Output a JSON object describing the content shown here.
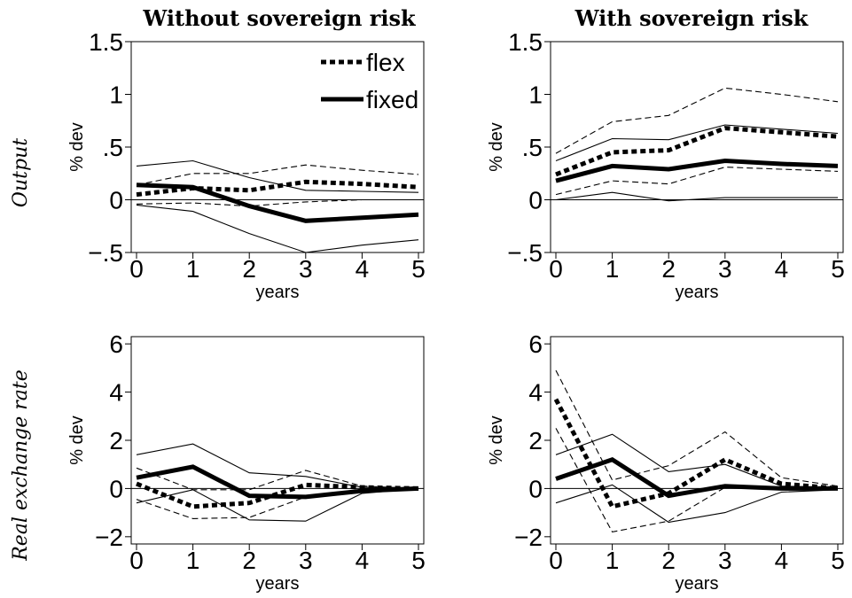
{
  "col_titles": [
    "Without sovereign risk",
    "With sovereign risk"
  ],
  "row_titles": [
    "Output",
    "Real exchange rate"
  ],
  "legend": {
    "flex": "flex",
    "fixed": "fixed"
  },
  "chart_data": [
    {
      "type": "line",
      "xlabel": "years",
      "ylabel": "% dev",
      "x": [
        0,
        1,
        2,
        3,
        4,
        5
      ],
      "xlim": [
        0,
        5
      ],
      "ylim": [
        -0.5,
        1.5
      ],
      "yticks": [
        -0.5,
        0,
        0.5,
        1,
        1.5
      ],
      "ytick_labels": [
        "−.5",
        "0",
        ".5",
        "1",
        "1.5"
      ],
      "zero_line": true,
      "legend_position": "top-right",
      "series": [
        {
          "name": "flex",
          "style": "thick-dotted",
          "values": [
            0.05,
            0.11,
            0.09,
            0.17,
            0.15,
            0.12
          ]
        },
        {
          "style": "thin-dashed",
          "values": [
            0.14,
            0.25,
            0.25,
            0.33,
            0.28,
            0.24
          ]
        },
        {
          "style": "thin-dashed",
          "values": [
            -0.04,
            -0.03,
            -0.06,
            -0.02,
            0.0,
            0.0
          ]
        },
        {
          "name": "fixed",
          "style": "thick-solid",
          "values": [
            0.14,
            0.12,
            -0.06,
            -0.2,
            -0.17,
            -0.14
          ]
        },
        {
          "style": "thin-solid",
          "values": [
            0.32,
            0.37,
            0.21,
            0.09,
            0.08,
            0.07
          ]
        },
        {
          "style": "thin-solid",
          "values": [
            -0.05,
            -0.11,
            -0.32,
            -0.5,
            -0.43,
            -0.38
          ]
        }
      ]
    },
    {
      "type": "line",
      "xlabel": "years",
      "ylabel": "% dev",
      "x": [
        0,
        1,
        2,
        3,
        4,
        5
      ],
      "xlim": [
        0,
        5
      ],
      "ylim": [
        -0.5,
        1.5
      ],
      "yticks": [
        -0.5,
        0,
        0.5,
        1,
        1.5
      ],
      "ytick_labels": [
        "−.5",
        "0",
        ".5",
        "1",
        "1.5"
      ],
      "zero_line": true,
      "series": [
        {
          "name": "flex",
          "style": "thick-dotted",
          "values": [
            0.24,
            0.45,
            0.47,
            0.68,
            0.64,
            0.6
          ]
        },
        {
          "style": "thin-dashed",
          "values": [
            0.44,
            0.74,
            0.8,
            1.06,
            1.0,
            0.93
          ]
        },
        {
          "style": "thin-dashed",
          "values": [
            0.05,
            0.18,
            0.15,
            0.31,
            0.29,
            0.27
          ]
        },
        {
          "name": "fixed",
          "style": "thick-solid",
          "values": [
            0.18,
            0.32,
            0.29,
            0.37,
            0.34,
            0.32
          ]
        },
        {
          "style": "thin-solid",
          "values": [
            0.37,
            0.58,
            0.57,
            0.71,
            0.67,
            0.63
          ]
        },
        {
          "style": "thin-solid",
          "values": [
            0.0,
            0.07,
            -0.01,
            0.02,
            0.02,
            0.02
          ]
        }
      ]
    },
    {
      "type": "line",
      "xlabel": "years",
      "ylabel": "% dev",
      "x": [
        0,
        1,
        2,
        3,
        4,
        5
      ],
      "xlim": [
        0,
        5
      ],
      "ylim": [
        -2.3,
        6.3
      ],
      "yticks": [
        -2,
        0,
        2,
        4,
        6
      ],
      "ytick_labels": [
        "−2",
        "0",
        "2",
        "4",
        "6"
      ],
      "zero_line": true,
      "series": [
        {
          "name": "flex",
          "style": "thick-dotted",
          "values": [
            0.2,
            -0.75,
            -0.6,
            0.15,
            0.05,
            0.0
          ]
        },
        {
          "style": "thin-dashed",
          "values": [
            0.85,
            -0.05,
            -0.05,
            0.75,
            0.1,
            0.0
          ]
        },
        {
          "style": "thin-dashed",
          "values": [
            -0.45,
            -1.25,
            -1.2,
            -0.35,
            -0.05,
            0.0
          ]
        },
        {
          "name": "fixed",
          "style": "thick-solid",
          "values": [
            0.45,
            0.9,
            -0.3,
            -0.35,
            -0.1,
            0.0
          ]
        },
        {
          "style": "thin-solid",
          "values": [
            1.4,
            1.85,
            0.65,
            0.5,
            0.05,
            0.0
          ]
        },
        {
          "style": "thin-solid",
          "values": [
            -0.6,
            -0.05,
            -1.3,
            -1.35,
            -0.2,
            0.0
          ]
        }
      ]
    },
    {
      "type": "line",
      "xlabel": "years",
      "ylabel": "% dev",
      "x": [
        0,
        1,
        2,
        3,
        4,
        5
      ],
      "xlim": [
        0,
        5
      ],
      "ylim": [
        -2.3,
        6.3
      ],
      "yticks": [
        -2,
        0,
        2,
        4,
        6
      ],
      "ytick_labels": [
        "−2",
        "0",
        "2",
        "4",
        "6"
      ],
      "zero_line": true,
      "series": [
        {
          "name": "flex",
          "style": "thick-dotted",
          "values": [
            3.7,
            -0.75,
            -0.2,
            1.2,
            0.2,
            0.0
          ]
        },
        {
          "style": "thin-dashed",
          "values": [
            4.9,
            0.35,
            0.95,
            2.35,
            0.45,
            0.1
          ]
        },
        {
          "style": "thin-dashed",
          "values": [
            2.5,
            -1.8,
            -1.35,
            0.05,
            -0.05,
            -0.05
          ]
        },
        {
          "name": "fixed",
          "style": "thick-solid",
          "values": [
            0.4,
            1.2,
            -0.3,
            0.1,
            0.0,
            0.0
          ]
        },
        {
          "style": "thin-solid",
          "values": [
            1.4,
            2.25,
            0.7,
            1.0,
            0.1,
            0.05
          ]
        },
        {
          "style": "thin-solid",
          "values": [
            -0.6,
            0.15,
            -1.4,
            -1.0,
            -0.15,
            -0.05
          ]
        }
      ]
    }
  ]
}
